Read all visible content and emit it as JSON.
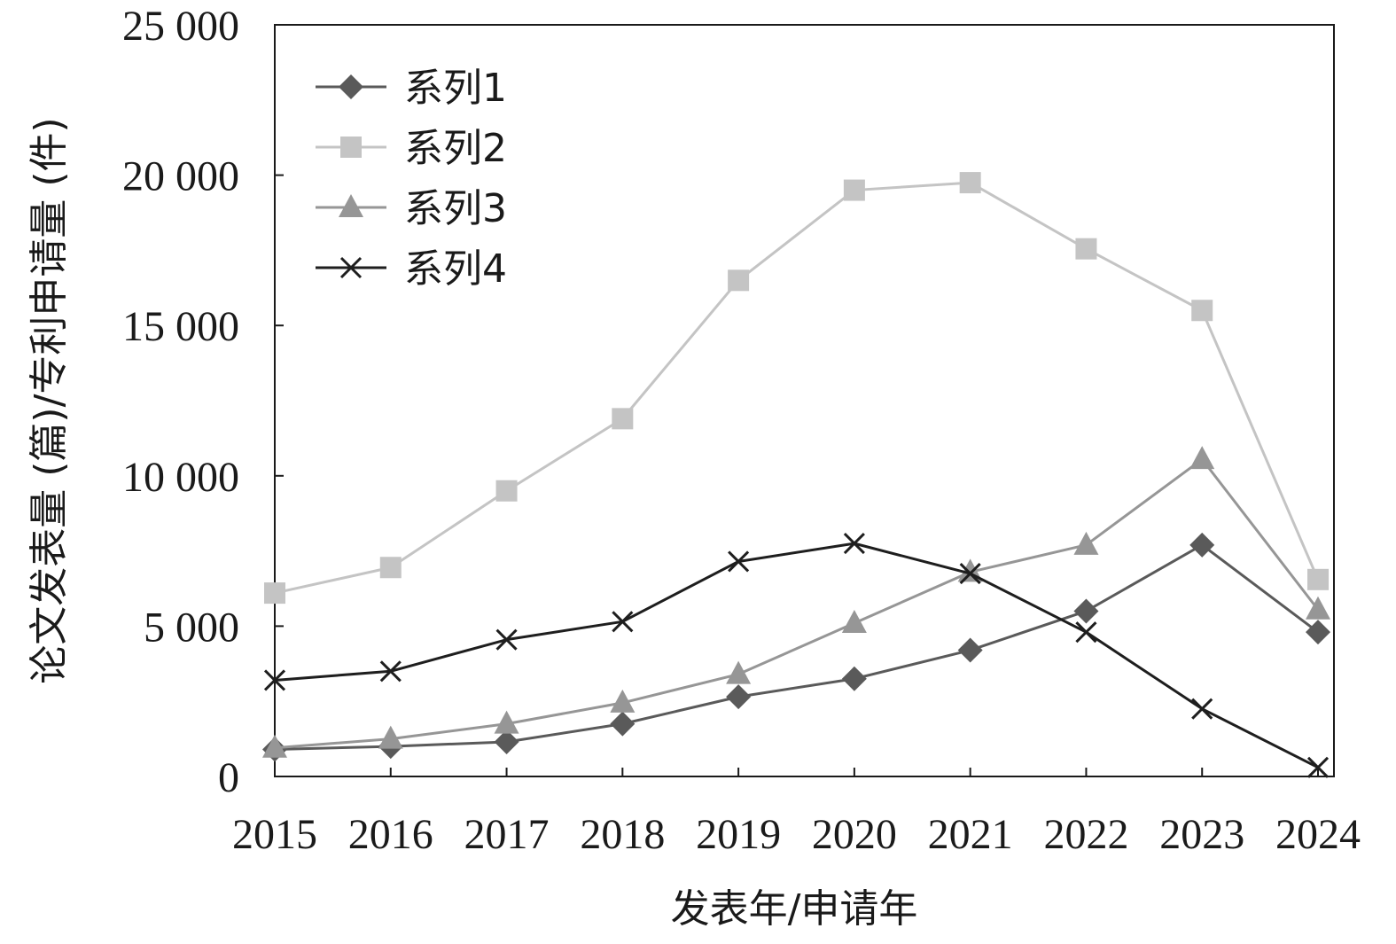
{
  "chart_data": {
    "type": "line",
    "xlabel": "发表年/申请年",
    "ylabel": "论文发表量 (篇)/专利申请量 (件)",
    "categories": [
      "2015",
      "2016",
      "2017",
      "2018",
      "2019",
      "2020",
      "2021",
      "2022",
      "2023",
      "2024"
    ],
    "ylim": [
      0,
      25000
    ],
    "yticks": [
      0,
      5000,
      10000,
      15000,
      20000,
      25000
    ],
    "ytick_labels": [
      "0",
      "5 000",
      "10 000",
      "15 000",
      "20 000",
      "25 000"
    ],
    "grid": false,
    "legend_position": "top-left",
    "series": [
      {
        "name": "系列1",
        "marker": "diamond",
        "color": "#5a5a5a",
        "values": [
          900,
          1000,
          1150,
          1750,
          2650,
          3250,
          4200,
          5500,
          7700,
          4800
        ]
      },
      {
        "name": "系列2",
        "marker": "square",
        "color": "#c4c4c4",
        "values": [
          6100,
          6950,
          9500,
          11900,
          16500,
          19500,
          19750,
          17550,
          15500,
          6550
        ]
      },
      {
        "name": "系列3",
        "marker": "triangle",
        "color": "#969696",
        "values": [
          950,
          1250,
          1750,
          2450,
          3400,
          5100,
          6800,
          7700,
          10550,
          5550
        ]
      },
      {
        "name": "系列4",
        "marker": "x",
        "color": "#1e1e1e",
        "values": [
          3200,
          3500,
          4550,
          5150,
          7150,
          7750,
          6750,
          4800,
          2250,
          300
        ]
      }
    ]
  }
}
